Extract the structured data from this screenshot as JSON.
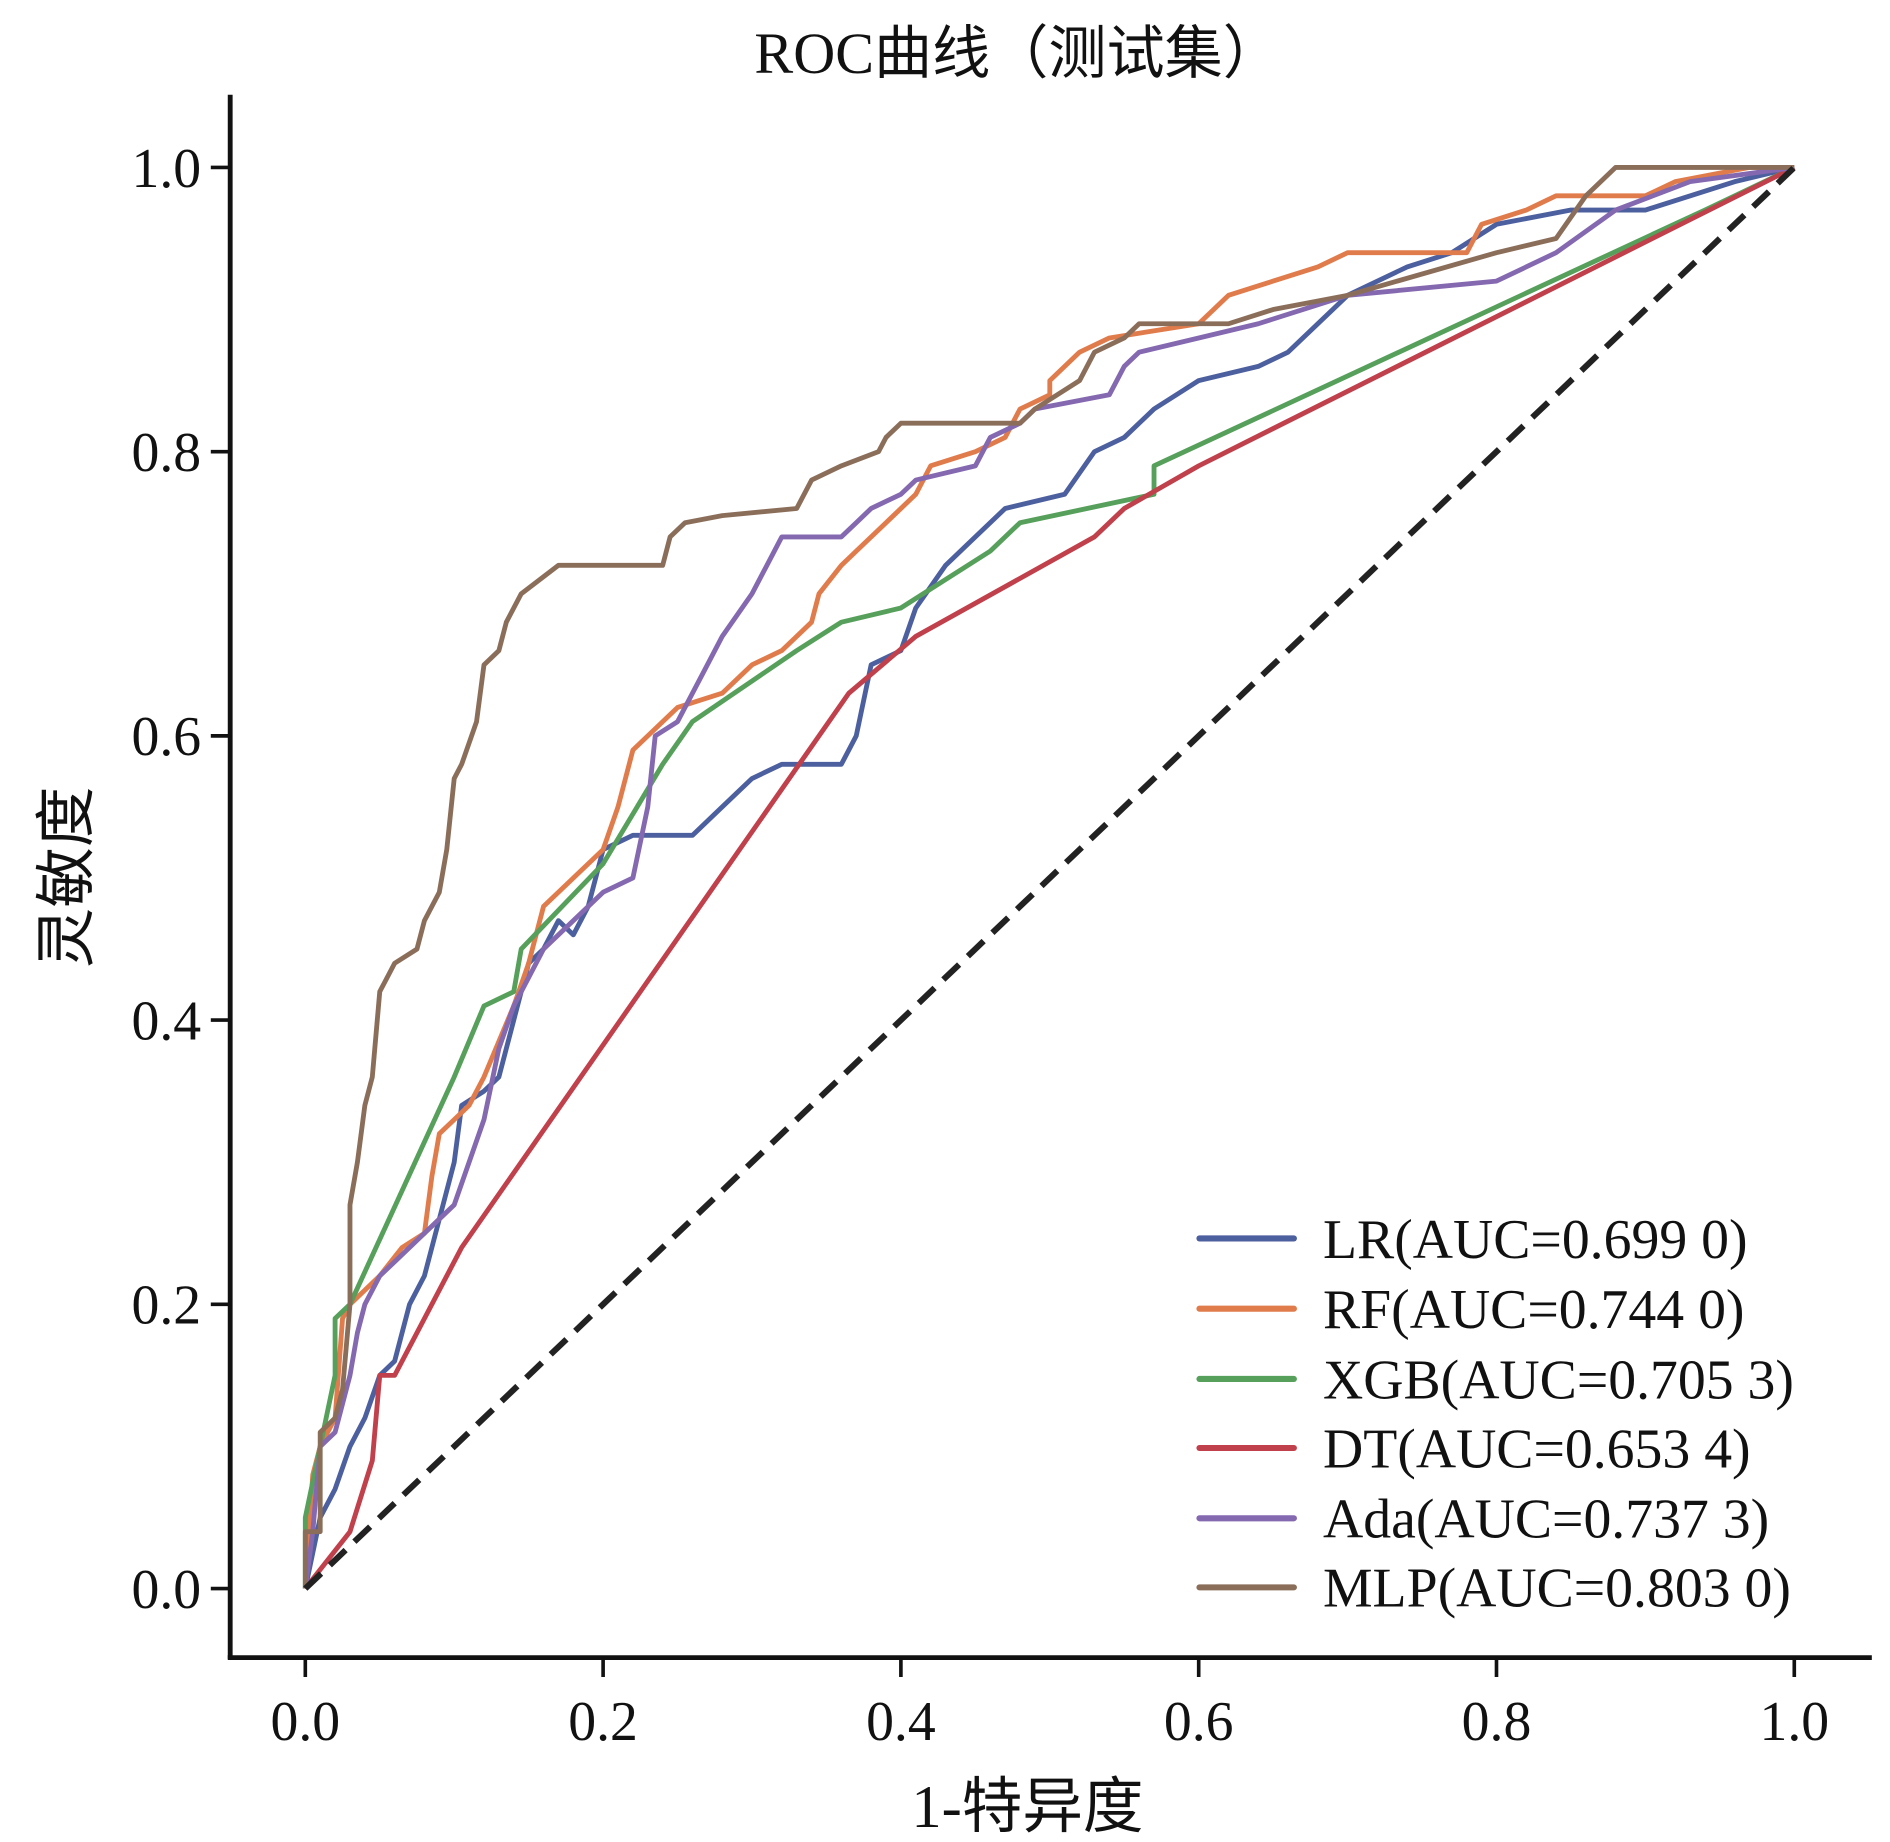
{
  "chart_data": {
    "type": "line",
    "title": "ROC曲线（测试集）",
    "xlabel": "1-特异度",
    "ylabel": "灵敏度",
    "xlim": [
      0,
      1
    ],
    "ylim": [
      0,
      1
    ],
    "xticks": [
      "0.0",
      "0.2",
      "0.4",
      "0.6",
      "0.8",
      "1.0"
    ],
    "yticks": [
      "0.0",
      "0.2",
      "0.4",
      "0.6",
      "0.8",
      "1.0"
    ],
    "grid": false,
    "legend_position": "bottom-right",
    "reference_line": {
      "style": "dashed",
      "color": "#222222",
      "points": [
        [
          0,
          0
        ],
        [
          1,
          1
        ]
      ]
    },
    "series": [
      {
        "name": "LR(AUC=0.699 0)",
        "color": "#4c5f9e",
        "points": [
          [
            0,
            0
          ],
          [
            0.01,
            0.05
          ],
          [
            0.02,
            0.07
          ],
          [
            0.03,
            0.1
          ],
          [
            0.04,
            0.12
          ],
          [
            0.05,
            0.15
          ],
          [
            0.06,
            0.16
          ],
          [
            0.07,
            0.2
          ],
          [
            0.08,
            0.22
          ],
          [
            0.09,
            0.26
          ],
          [
            0.1,
            0.3
          ],
          [
            0.105,
            0.34
          ],
          [
            0.12,
            0.35
          ],
          [
            0.13,
            0.36
          ],
          [
            0.14,
            0.4
          ],
          [
            0.15,
            0.44
          ],
          [
            0.16,
            0.45
          ],
          [
            0.17,
            0.47
          ],
          [
            0.18,
            0.46
          ],
          [
            0.19,
            0.48
          ],
          [
            0.2,
            0.52
          ],
          [
            0.22,
            0.53
          ],
          [
            0.26,
            0.53
          ],
          [
            0.28,
            0.55
          ],
          [
            0.3,
            0.57
          ],
          [
            0.32,
            0.58
          ],
          [
            0.36,
            0.58
          ],
          [
            0.37,
            0.6
          ],
          [
            0.38,
            0.65
          ],
          [
            0.4,
            0.66
          ],
          [
            0.41,
            0.69
          ],
          [
            0.43,
            0.72
          ],
          [
            0.45,
            0.74
          ],
          [
            0.47,
            0.76
          ],
          [
            0.51,
            0.77
          ],
          [
            0.53,
            0.8
          ],
          [
            0.55,
            0.81
          ],
          [
            0.57,
            0.83
          ],
          [
            0.6,
            0.85
          ],
          [
            0.64,
            0.86
          ],
          [
            0.66,
            0.87
          ],
          [
            0.68,
            0.89
          ],
          [
            0.7,
            0.91
          ],
          [
            0.74,
            0.93
          ],
          [
            0.77,
            0.94
          ],
          [
            0.8,
            0.96
          ],
          [
            0.85,
            0.97
          ],
          [
            0.9,
            0.97
          ],
          [
            0.96,
            0.99
          ],
          [
            1,
            1
          ]
        ]
      },
      {
        "name": "RF(AUC=0.744 0)",
        "color": "#e07c4c",
        "points": [
          [
            0,
            0
          ],
          [
            0.005,
            0.08
          ],
          [
            0.01,
            0.1
          ],
          [
            0.02,
            0.12
          ],
          [
            0.025,
            0.19
          ],
          [
            0.03,
            0.2
          ],
          [
            0.05,
            0.22
          ],
          [
            0.065,
            0.24
          ],
          [
            0.08,
            0.25
          ],
          [
            0.085,
            0.29
          ],
          [
            0.09,
            0.32
          ],
          [
            0.1,
            0.33
          ],
          [
            0.11,
            0.34
          ],
          [
            0.12,
            0.36
          ],
          [
            0.14,
            0.41
          ],
          [
            0.15,
            0.44
          ],
          [
            0.16,
            0.48
          ],
          [
            0.18,
            0.5
          ],
          [
            0.2,
            0.52
          ],
          [
            0.21,
            0.55
          ],
          [
            0.22,
            0.59
          ],
          [
            0.25,
            0.62
          ],
          [
            0.28,
            0.63
          ],
          [
            0.3,
            0.65
          ],
          [
            0.32,
            0.66
          ],
          [
            0.34,
            0.68
          ],
          [
            0.345,
            0.7
          ],
          [
            0.36,
            0.72
          ],
          [
            0.37,
            0.73
          ],
          [
            0.39,
            0.75
          ],
          [
            0.41,
            0.77
          ],
          [
            0.42,
            0.79
          ],
          [
            0.45,
            0.8
          ],
          [
            0.47,
            0.81
          ],
          [
            0.48,
            0.83
          ],
          [
            0.5,
            0.84
          ],
          [
            0.5,
            0.85
          ],
          [
            0.52,
            0.87
          ],
          [
            0.54,
            0.88
          ],
          [
            0.6,
            0.89
          ],
          [
            0.62,
            0.91
          ],
          [
            0.65,
            0.92
          ],
          [
            0.68,
            0.93
          ],
          [
            0.7,
            0.94
          ],
          [
            0.78,
            0.94
          ],
          [
            0.79,
            0.96
          ],
          [
            0.82,
            0.97
          ],
          [
            0.84,
            0.98
          ],
          [
            0.9,
            0.98
          ],
          [
            0.92,
            0.99
          ],
          [
            0.97,
            1
          ],
          [
            1,
            1
          ]
        ]
      },
      {
        "name": "XGB(AUC=0.705 3)",
        "color": "#56a05b",
        "points": [
          [
            0,
            0
          ],
          [
            0,
            0.05
          ],
          [
            0.02,
            0.15
          ],
          [
            0.02,
            0.19
          ],
          [
            0.03,
            0.2
          ],
          [
            0.1,
            0.36
          ],
          [
            0.12,
            0.41
          ],
          [
            0.14,
            0.42
          ],
          [
            0.145,
            0.45
          ],
          [
            0.2,
            0.51
          ],
          [
            0.24,
            0.58
          ],
          [
            0.26,
            0.61
          ],
          [
            0.33,
            0.66
          ],
          [
            0.36,
            0.68
          ],
          [
            0.4,
            0.69
          ],
          [
            0.46,
            0.73
          ],
          [
            0.48,
            0.75
          ],
          [
            0.57,
            0.77
          ],
          [
            0.57,
            0.79
          ],
          [
            0.94,
            0.97
          ],
          [
            1,
            1
          ]
        ]
      },
      {
        "name": "DT(AUC=0.653 4)",
        "color": "#c0404b",
        "points": [
          [
            0,
            0
          ],
          [
            0.03,
            0.04
          ],
          [
            0.045,
            0.09
          ],
          [
            0.05,
            0.15
          ],
          [
            0.06,
            0.15
          ],
          [
            0.105,
            0.24
          ],
          [
            0.365,
            0.63
          ],
          [
            0.41,
            0.67
          ],
          [
            0.53,
            0.74
          ],
          [
            0.55,
            0.76
          ],
          [
            0.6,
            0.79
          ],
          [
            1,
            1
          ]
        ]
      },
      {
        "name": "Ada(AUC=0.737 3)",
        "color": "#8468b0",
        "points": [
          [
            0,
            0
          ],
          [
            0.005,
            0.04
          ],
          [
            0.01,
            0.1
          ],
          [
            0.02,
            0.11
          ],
          [
            0.03,
            0.15
          ],
          [
            0.035,
            0.18
          ],
          [
            0.04,
            0.2
          ],
          [
            0.05,
            0.22
          ],
          [
            0.06,
            0.23
          ],
          [
            0.07,
            0.24
          ],
          [
            0.08,
            0.25
          ],
          [
            0.09,
            0.26
          ],
          [
            0.1,
            0.27
          ],
          [
            0.12,
            0.33
          ],
          [
            0.13,
            0.38
          ],
          [
            0.14,
            0.41
          ],
          [
            0.15,
            0.43
          ],
          [
            0.16,
            0.45
          ],
          [
            0.2,
            0.49
          ],
          [
            0.22,
            0.5
          ],
          [
            0.23,
            0.55
          ],
          [
            0.235,
            0.6
          ],
          [
            0.25,
            0.61
          ],
          [
            0.26,
            0.63
          ],
          [
            0.27,
            0.65
          ],
          [
            0.28,
            0.67
          ],
          [
            0.3,
            0.7
          ],
          [
            0.31,
            0.72
          ],
          [
            0.32,
            0.74
          ],
          [
            0.36,
            0.74
          ],
          [
            0.37,
            0.75
          ],
          [
            0.38,
            0.76
          ],
          [
            0.4,
            0.77
          ],
          [
            0.41,
            0.78
          ],
          [
            0.45,
            0.79
          ],
          [
            0.46,
            0.81
          ],
          [
            0.48,
            0.82
          ],
          [
            0.49,
            0.83
          ],
          [
            0.54,
            0.84
          ],
          [
            0.55,
            0.86
          ],
          [
            0.56,
            0.87
          ],
          [
            0.6,
            0.88
          ],
          [
            0.64,
            0.89
          ],
          [
            0.7,
            0.91
          ],
          [
            0.8,
            0.92
          ],
          [
            0.84,
            0.94
          ],
          [
            0.88,
            0.97
          ],
          [
            0.93,
            0.99
          ],
          [
            1,
            1
          ]
        ]
      },
      {
        "name": "MLP(AUC=0.803 0)",
        "color": "#8b6e5a",
        "points": [
          [
            0,
            0
          ],
          [
            0,
            0.04
          ],
          [
            0.01,
            0.04
          ],
          [
            0.01,
            0.11
          ],
          [
            0.02,
            0.12
          ],
          [
            0.025,
            0.14
          ],
          [
            0.03,
            0.2
          ],
          [
            0.03,
            0.27
          ],
          [
            0.035,
            0.3
          ],
          [
            0.04,
            0.34
          ],
          [
            0.045,
            0.36
          ],
          [
            0.05,
            0.42
          ],
          [
            0.06,
            0.44
          ],
          [
            0.075,
            0.45
          ],
          [
            0.08,
            0.47
          ],
          [
            0.09,
            0.49
          ],
          [
            0.095,
            0.52
          ],
          [
            0.1,
            0.57
          ],
          [
            0.105,
            0.58
          ],
          [
            0.115,
            0.61
          ],
          [
            0.12,
            0.65
          ],
          [
            0.13,
            0.66
          ],
          [
            0.135,
            0.68
          ],
          [
            0.145,
            0.7
          ],
          [
            0.17,
            0.72
          ],
          [
            0.24,
            0.72
          ],
          [
            0.245,
            0.74
          ],
          [
            0.255,
            0.75
          ],
          [
            0.28,
            0.755
          ],
          [
            0.33,
            0.76
          ],
          [
            0.34,
            0.78
          ],
          [
            0.36,
            0.79
          ],
          [
            0.385,
            0.8
          ],
          [
            0.39,
            0.81
          ],
          [
            0.4,
            0.82
          ],
          [
            0.48,
            0.82
          ],
          [
            0.49,
            0.83
          ],
          [
            0.52,
            0.85
          ],
          [
            0.53,
            0.87
          ],
          [
            0.55,
            0.88
          ],
          [
            0.56,
            0.89
          ],
          [
            0.62,
            0.89
          ],
          [
            0.65,
            0.9
          ],
          [
            0.7,
            0.91
          ],
          [
            0.8,
            0.94
          ],
          [
            0.84,
            0.95
          ],
          [
            0.86,
            0.98
          ],
          [
            0.88,
            1
          ],
          [
            1,
            1
          ]
        ]
      }
    ]
  }
}
